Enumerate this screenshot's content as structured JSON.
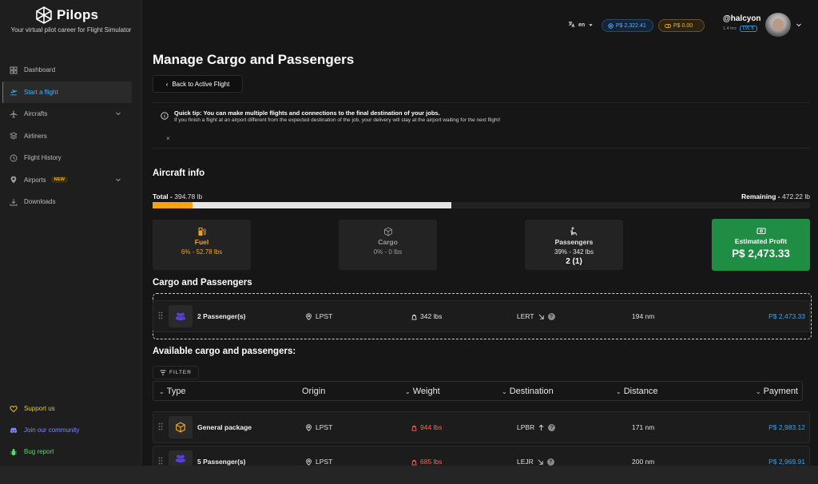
{
  "app": {
    "name": "Pilops",
    "tagline": "Your virtual pilot career for Flight Simulator"
  },
  "sidebar": {
    "items": [
      {
        "label": "Dashboard",
        "icon": "grid-icon"
      },
      {
        "label": "Start a flight",
        "icon": "takeoff-icon",
        "active": true
      },
      {
        "label": "Aircrafts",
        "icon": "plane-icon",
        "expandable": true
      },
      {
        "label": "Airliners",
        "icon": "layers-icon"
      },
      {
        "label": "Flight History",
        "icon": "history-icon"
      },
      {
        "label": "Airports",
        "icon": "pin-icon",
        "badge": "NEW",
        "expandable": true
      },
      {
        "label": "Downloads",
        "icon": "download-icon"
      }
    ],
    "bottom": [
      {
        "label": "Support us",
        "icon": "heart-icon"
      },
      {
        "label": "Join our community",
        "icon": "discord-icon"
      },
      {
        "label": "Bug report",
        "icon": "bug-icon"
      }
    ]
  },
  "topbar": {
    "language": "en",
    "balance": "P$ 2,322.41",
    "pending": "P$ 0.00",
    "username": "@halcyon",
    "hours": "1.4 hrs",
    "level": "LVL 6"
  },
  "page": {
    "title": "Manage Cargo and Passengers",
    "back_label": "Back to Active Flight",
    "tip_title": "Quick tip: You can make multiple flights and connections to the final destination of your jobs.",
    "tip_body": "If you finish a flight at an airport different from the expected destination of the job, your delivery will stay at the airport waiting for the next flight!",
    "tip_close": "×"
  },
  "aircraft_info": {
    "title": "Aircraft info",
    "total_label": "Total -",
    "total_value": "394.78 lb",
    "remaining_label": "Remaining -",
    "remaining_value": "472.22 lb",
    "load_fraction": 0.455,
    "fuel_fraction": 0.061,
    "fuel": {
      "label": "Fuel",
      "value": "6% - 52.78 lbs"
    },
    "cargo": {
      "label": "Cargo",
      "value": "0% - 0 lbs"
    },
    "passengers": {
      "label": "Passengers",
      "value": "39% - 342 lbs",
      "count": "2 (1)"
    },
    "profit": {
      "label": "Estimated Profit",
      "value": "P$ 2,473.33"
    }
  },
  "loaded": {
    "title": "Cargo and Passengers",
    "item": {
      "name": "2 Passenger(s)",
      "origin": "LPST",
      "weight": "342 lbs",
      "dest": "LERT",
      "dist": "194 nm",
      "pay": "P$ 2,473.33"
    }
  },
  "available": {
    "title": "Available cargo and passengers:",
    "filter_label": "FILTER",
    "columns": [
      "Type",
      "Origin",
      "Weight",
      "Destination",
      "Distance",
      "Payment"
    ],
    "rows": [
      {
        "name": "General package",
        "origin": "LPST",
        "weight": "944 lbs",
        "dest": "LPBR",
        "dist": "171 nm",
        "pay": "P$ 2,983.12",
        "kind": "package"
      },
      {
        "name": "5 Passenger(s)",
        "origin": "LPST",
        "weight": "685 lbs",
        "dest": "LEJR",
        "dist": "200 nm",
        "pay": "P$ 2,969.91",
        "kind": "passengers"
      }
    ]
  },
  "colors": {
    "accent": "#38b6ff",
    "fuel": "#f5a315",
    "profit": "#1f8d43",
    "warning": "#f06a5a"
  }
}
